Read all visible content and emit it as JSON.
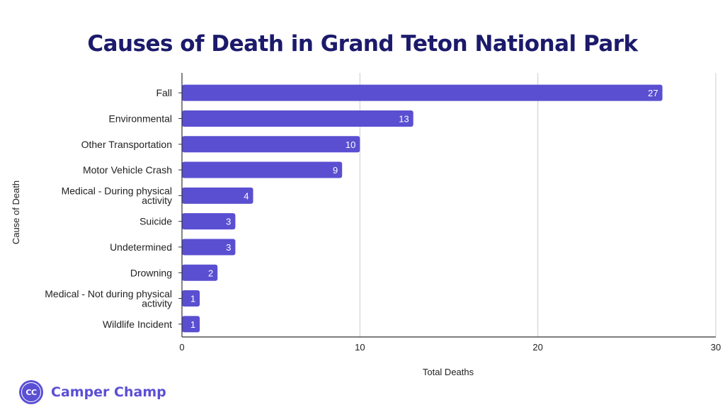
{
  "brand": {
    "logo_text": "CC",
    "name": "Camper Champ"
  },
  "colors": {
    "bar": "#5a4fd1",
    "title": "#1b1a6b",
    "grid": "#cccccc",
    "brand": "#5b4fd4"
  },
  "chart_data": {
    "type": "bar",
    "orientation": "horizontal",
    "title": "Causes of Death in Grand Teton National Park",
    "xlabel": "Total Deaths",
    "ylabel": "Cause of Death",
    "categories": [
      [
        "Fall"
      ],
      [
        "Environmental"
      ],
      [
        "Other Transportation"
      ],
      [
        "Motor Vehicle Crash"
      ],
      [
        "Medical - During physical",
        "activity"
      ],
      [
        "Suicide"
      ],
      [
        "Undetermined"
      ],
      [
        "Drowning"
      ],
      [
        "Medical - Not during physical",
        "activity"
      ],
      [
        "Wildlife Incident"
      ]
    ],
    "values": [
      27,
      13,
      10,
      9,
      4,
      3,
      3,
      2,
      1,
      1
    ],
    "data_labels": [
      "27",
      "13",
      "10",
      "9",
      "4",
      "3",
      "3",
      "2",
      "1",
      "1"
    ],
    "xlim": [
      0,
      30
    ],
    "xticks": [
      0,
      10,
      20,
      30
    ],
    "xtick_labels": [
      "0",
      "10",
      "20",
      "30"
    ],
    "grid": true,
    "legend": "none"
  }
}
